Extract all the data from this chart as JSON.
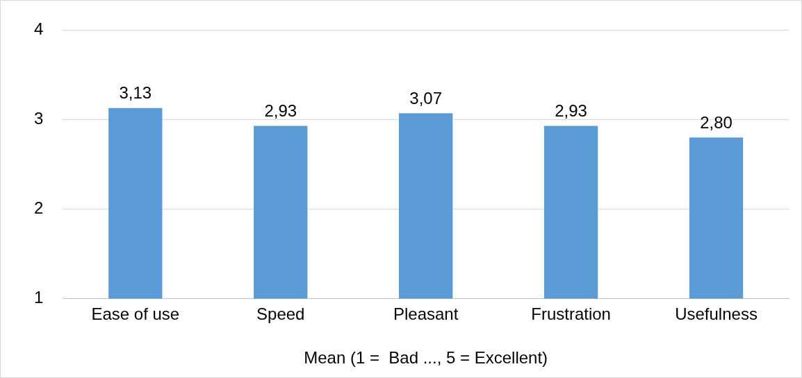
{
  "chart_data": {
    "type": "bar",
    "xlabel": "Mean (1 =  Bad ..., 5 = Excellent)",
    "categories": [
      "Ease of use",
      "Speed",
      "Pleasant",
      "Frustration",
      "Usefulness"
    ],
    "values": [
      3.13,
      2.93,
      3.07,
      2.93,
      2.8
    ],
    "value_labels": [
      "3,13",
      "2,93",
      "3,07",
      "2,93",
      "2,80"
    ],
    "color": "#5b9bd5",
    "ylim": [
      1,
      4
    ],
    "yticks": [
      1,
      2,
      3,
      4
    ],
    "grid": "y",
    "legend": false
  }
}
